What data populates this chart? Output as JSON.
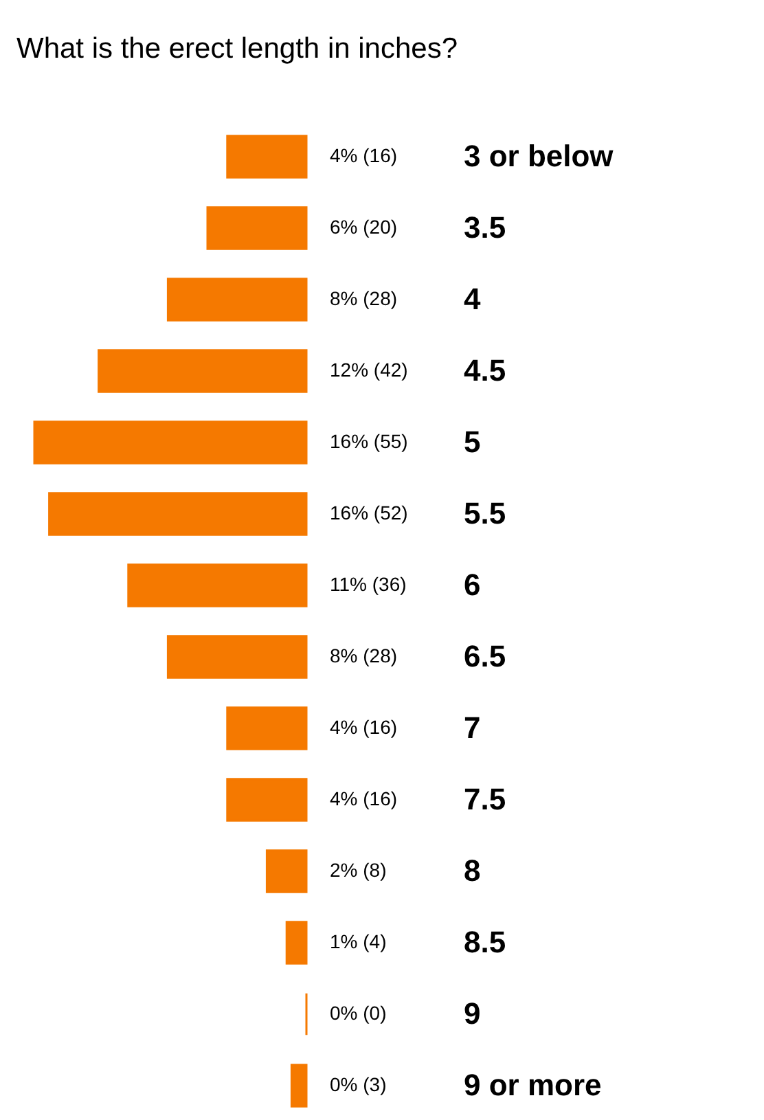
{
  "chart_data": {
    "type": "bar",
    "orientation": "horizontal",
    "title": "What is the erect length in inches?",
    "categories": [
      "3 or below",
      "3.5",
      "4",
      "4.5",
      "5",
      "5.5",
      "6",
      "6.5",
      "7",
      "7.5",
      "8",
      "8.5",
      "9",
      "9 or more"
    ],
    "values": [
      16,
      20,
      28,
      42,
      55,
      52,
      36,
      28,
      16,
      16,
      8,
      4,
      0,
      3
    ],
    "value_labels": [
      "4% (16)",
      "6% (20)",
      "8% (28)",
      "12% (42)",
      "16% (55)",
      "16% (52)",
      "11% (36)",
      "8% (28)",
      "4% (16)",
      "4% (16)",
      "2% (8)",
      "1% (4)",
      "0% (0)",
      "0% (3)"
    ],
    "color": "#f57900"
  }
}
